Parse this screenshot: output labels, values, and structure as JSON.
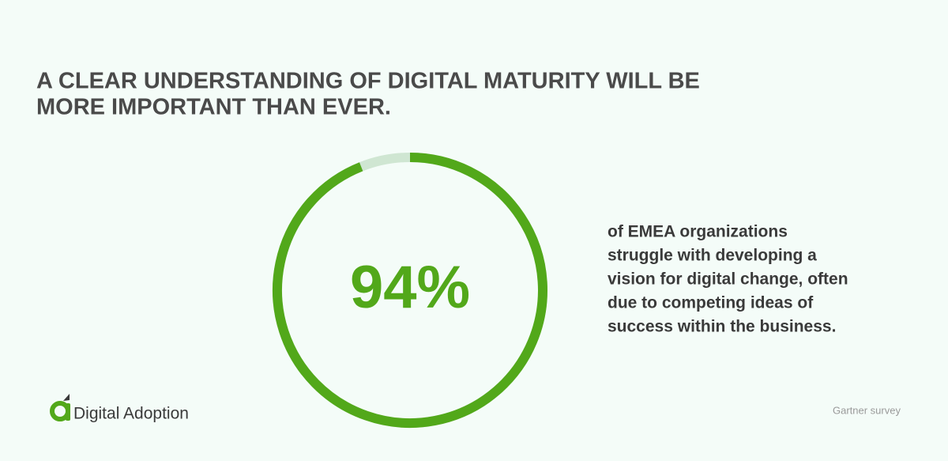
{
  "chart_data": {
    "type": "donut",
    "title_lines": [
      "A CLEAR UNDERSTANDING OF DIGITAL MATURITY WILL BE",
      "MORE IMPORTANT THAN EVER."
    ],
    "values": [
      94
    ],
    "value_labels": [
      "94%"
    ],
    "color": "#52a81a",
    "track_color": "#cfe6d2",
    "description_lines": [
      "of EMEA organizations",
      "struggle with developing a",
      "vision for digital change, often",
      "due to competing ideas of",
      "success within the business."
    ],
    "brand": "Digital Adoption",
    "source": "Gartner survey"
  }
}
